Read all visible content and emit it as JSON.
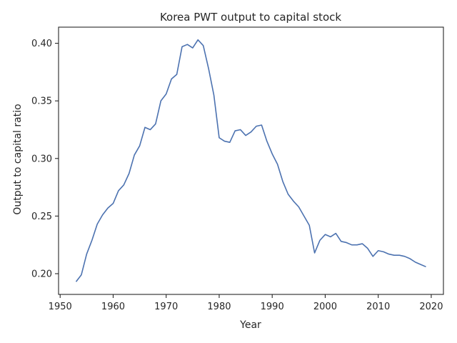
{
  "chart_data": {
    "type": "line",
    "title": "Korea PWT output to capital stock",
    "xlabel": "Year",
    "ylabel": "Output to capital ratio",
    "xlim": [
      1949.7,
      2022.3
    ],
    "ylim": [
      0.182,
      0.414
    ],
    "xticks": [
      1950,
      1960,
      1970,
      1980,
      1990,
      2000,
      2010,
      2020
    ],
    "yticks": [
      0.2,
      0.25,
      0.3,
      0.35,
      0.4
    ],
    "xtick_labels": [
      "1950",
      "1960",
      "1970",
      "1980",
      "1990",
      "2000",
      "2010",
      "2020"
    ],
    "ytick_labels": [
      "0.20",
      "0.25",
      "0.30",
      "0.35",
      "0.40"
    ],
    "grid": false,
    "line_color": "#4c72b0",
    "x": [
      1953,
      1954,
      1955,
      1956,
      1957,
      1958,
      1959,
      1960,
      1961,
      1962,
      1963,
      1964,
      1965,
      1966,
      1967,
      1968,
      1969,
      1970,
      1971,
      1972,
      1973,
      1974,
      1975,
      1976,
      1977,
      1978,
      1979,
      1980,
      1981,
      1982,
      1983,
      1984,
      1985,
      1986,
      1987,
      1988,
      1989,
      1990,
      1991,
      1992,
      1993,
      1994,
      1995,
      1996,
      1997,
      1998,
      1999,
      2000,
      2001,
      2002,
      2003,
      2004,
      2005,
      2006,
      2007,
      2008,
      2009,
      2010,
      2011,
      2012,
      2013,
      2014,
      2015,
      2016,
      2017,
      2018,
      2019
    ],
    "series": [
      {
        "values": [
          0.193,
          0.199,
          0.217,
          0.229,
          0.243,
          0.251,
          0.257,
          0.261,
          0.272,
          0.277,
          0.287,
          0.303,
          0.311,
          0.327,
          0.325,
          0.33,
          0.35,
          0.356,
          0.369,
          0.373,
          0.397,
          0.399,
          0.396,
          0.403,
          0.398,
          0.378,
          0.355,
          0.318,
          0.315,
          0.314,
          0.324,
          0.325,
          0.32,
          0.323,
          0.328,
          0.329,
          0.315,
          0.304,
          0.295,
          0.28,
          0.269,
          0.263,
          0.258,
          0.25,
          0.242,
          0.218,
          0.229,
          0.234,
          0.232,
          0.235,
          0.228,
          0.227,
          0.225,
          0.225,
          0.226,
          0.222,
          0.215,
          0.22,
          0.219,
          0.217,
          0.216,
          0.216,
          0.215,
          0.213,
          0.21,
          0.208,
          0.206
        ]
      }
    ]
  }
}
